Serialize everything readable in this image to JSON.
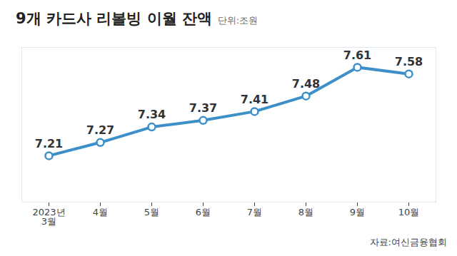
{
  "chart_data": {
    "type": "line",
    "title": "9개 카드사 리볼빙 이월 잔액",
    "subtitle": "단위:조원",
    "caption": "자료:여신금융협회",
    "categories": [
      "2023년\n3월",
      "4월",
      "5월",
      "6월",
      "7월",
      "8월",
      "9월",
      "10월"
    ],
    "values": [
      7.21,
      7.27,
      7.34,
      7.37,
      7.41,
      7.48,
      7.61,
      7.58
    ],
    "color": "#3d8fc8",
    "marker": "circle",
    "ylim": [
      7.0,
      7.7
    ],
    "yticks": [],
    "data_labels": true,
    "tick_labels": "x",
    "grid": false
  }
}
